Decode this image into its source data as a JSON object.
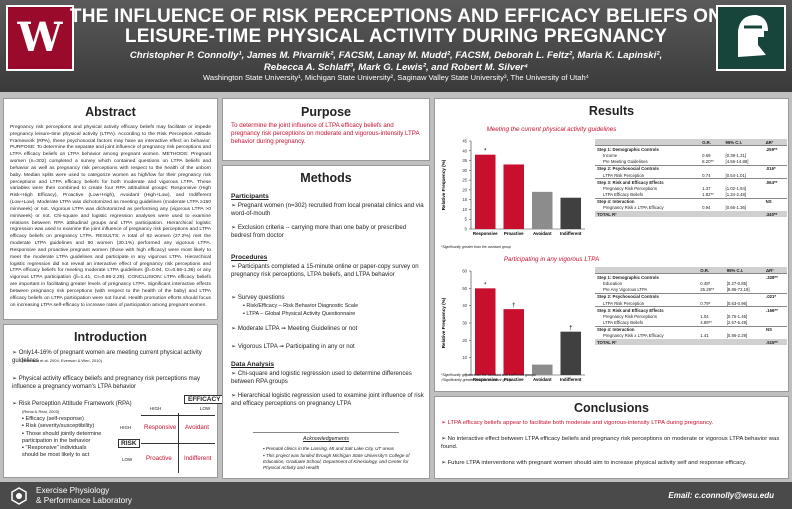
{
  "title": {
    "line1": "THE INFLUENCE OF RISK PERCEPTIONS AND EFFICACY BELIEFS ON",
    "line2": "LEISURE-TIME PHYSICAL ACTIVITY DURING PREGNANCY"
  },
  "authors": {
    "line1": "Christopher P. Connolly¹, James M. Pivarnik², FACSM, Lanay M. Mudd², FACSM, Deborah L. Feltz², Maria K. Lapinski²,",
    "line2": "Rebecca A. Schlaff³, Mark G. Lewis², and Robert M. Silver⁴",
    "affiliations": "Washington State University¹, Michigan State University², Saginaw Valley State University³, The University of Utah⁴"
  },
  "abstract": {
    "heading": "Abstract",
    "text": "Pregnancy risk perceptions and physical activity efficacy beliefs may facilitate or impede pregnancy leisure-time physical activity (LTPA). According to the Risk Perception Attitude Framework (RPA), these psychosocial factors may have an interactive effect on behavior. PURPOSE: To determine the separate and joint influence of pregnancy risk perceptions and LTPA efficacy beliefs on LTPA behavior among pregnant women. METHODS: Pregnant women (n=302) completed a survey which contained questions on LTPA beliefs and behavior as well as pregnancy risk perceptions with respect to the health of the unborn baby. Median splits were used to categorize women as high/low for their pregnancy risk perceptions and LTPA efficacy beliefs for both moderate and vigorous LTPA. These variables were then combined to create four RPA attitudinal groups: Responsive (High Risk+High Efficacy), Proactive (Low+High), Avoidant (High+Low), and Indifferent (Low+Low). Moderate LTPA was dichotomized as meeting guidelines (moderate LTPA ≥150 min/week) or not. Vigorous LTPA was dichotomized as performing any (vigorous LTPA >0 min/week) or not. Chi-square and logistic regression analyses were used to examine relations between RPA attitudinal groups and LTPA participation. Hierarchical logistic regression was used to examine the joint influence of pregnancy risk perceptions and LTPA efficacy beliefs on pregnancy LTPA. RESULTS: A total of 82 women (27.2%) met the moderate LTPA guidelines and 90 women (30.1%) performed any vigorous LTPA. Responsive and proactive pregnant women (those with high efficacy) were most likely to meet the moderate LTPA guidelines and participate in any vigorous LTPA. Hierarchical logistic regression did not reveal an interactive effect of pregnancy risk perceptions and LTPA efficacy beliefs for meeting moderate LTPA guidelines (β=0.94, CI=0.66-1.36) or any vigorous LTPA participation (β=1.41, CI=0.86-2.29). CONCLUSION: LTPA efficacy beliefs are important in facilitating greater levels of pregnancy LTPA. Significant interactive effects between pregnancy risk perceptions (with respect to the health of the baby) and LTPA efficacy beliefs on LTPA participation were not found. Health promotion efforts should focus on increasing LTPA self-efficacy to increase rates of participation among pregnant women."
  },
  "introduction": {
    "heading": "Introduction",
    "b1": "Only14-16% of pregnant women are meeting current physical activity guidelines",
    "b1ref": "(Evenson et al. 2004; Evenson & Wen, 2010)",
    "b2": "Physical activity efficacy beliefs and pregnancy risk perceptions may influence a pregnancy woman's LTPA behavior",
    "b3": "Risk Perception Attitude Framework (RPA)",
    "b3ref": "(Rimal & Real, 2003)",
    "subs": [
      "Efficacy (self-response)",
      "Risk (severity/susceptibility)",
      "Those should jointly determine participation in the behavior",
      "\"Responsive\" individuals should be most likely to act"
    ],
    "rpa": {
      "efficacy": "EFFICACY",
      "risk": "RISK",
      "high": "HIGH",
      "low": "LOW",
      "cells": [
        "Responsive",
        "Avoidant",
        "Proactive",
        "Indifferent"
      ]
    }
  },
  "purpose": {
    "heading": "Purpose",
    "text": "To determine the joint influence of LTPA efficacy beliefs and pregnancy risk perceptions on moderate and vigorous-intensity LTPA behavior during pregnancy."
  },
  "methods": {
    "heading": "Methods",
    "participants_h": "Participants",
    "p1": "Pregnant women (n=302) recruited from local prenatal clinics and via word-of-mouth",
    "p2": "Exclusion criteria -- carrying more than one baby or prescribed bedrest from doctor",
    "procedures_h": "Procedures",
    "pr1": "Participants completed a 15-minute online or paper-copy survey on pregnancy risk perceptions, LTPA beliefs, and LTPA behavior",
    "pr2": "Survey questions",
    "pr2a": "Risk/Efficacy – Risk Behavior Diagnostic Scale",
    "pr2b": "LTPA – Global Physical Activity Questionnaire",
    "pr3": "Moderate LTPA ➞ Meeting Guidelines or not",
    "pr4": "Vigorous LTPA ➞ Participating in any or not",
    "da_h": "Data Analysis",
    "da1": "Chi-square and logistic regression used to determine differences between RPA groups",
    "da2": "Hierarchical logistic regression used to examine joint influence of risk and efficacy perceptions on pregnancy LTPA",
    "ack_h": "Acknowledgements",
    "ack1": "Prenatal clinics in the Lansing, MI and Salt Lake City, UT areas",
    "ack2": "This project was funded through Michigan State University's College of Education, Graduate School, Department of Kinesiology, and Center for Physical Activity and Health"
  },
  "results": {
    "heading": "Results",
    "sub1": "Meeting the current physical activity guidelines",
    "sub2": "Participating in any vigorous LTPA",
    "note1": "*Significantly greater than the avoidant group",
    "note2a": "*Significantly greater than the avoidant and indifferent groups",
    "note2b": "†Significantly greater than the avoidant group",
    "table_head": [
      "",
      "O.R.",
      "95% C.I.",
      "ΔR²"
    ],
    "table1": [
      [
        "Step 1: Demographic Controls",
        "",
        "",
        ".259**"
      ],
      [
        "Income",
        "0.69",
        "[0.39-1.21]",
        ""
      ],
      [
        "Pre Meeting Guidelines",
        "8.20**",
        "[4.56-14.88]",
        ""
      ],
      [
        "Step 2: Psychosocial Controls",
        "",
        "",
        ".016*"
      ],
      [
        "LTPA Risk Perception",
        "0.74",
        "[0.54-1.01]",
        ""
      ],
      [
        "Step 3: Risk and Efficacy Effects",
        "",
        "",
        ".064**"
      ],
      [
        "Pregnancy Risk Perceptions",
        "1.37",
        "[1.02-1.84]",
        ""
      ],
      [
        "LTPA Efficacy Beliefs",
        "1.82**",
        "[1.34-2.48]",
        ""
      ],
      [
        "Step 4: Interaction",
        "",
        "",
        "NS"
      ],
      [
        "Pregnancy Risk x LTPA Efficacy",
        "0.94",
        "[0.66-1.36]",
        ""
      ],
      [
        "TOTAL R²",
        "",
        "",
        ".340**"
      ]
    ],
    "table2": [
      [
        "Step 1: Demographic Controls",
        "",
        "",
        ".328**"
      ],
      [
        "Education",
        "0.48*",
        "[0.27-0.85]",
        ""
      ],
      [
        "Pre Any Vigorous LTPA",
        "25.29**",
        "[8.86-72.19]",
        ""
      ],
      [
        "Step 2: Psychosocial Controls",
        "",
        "",
        ".021*"
      ],
      [
        "LTPA Risk Perception",
        "0.79*",
        "[0.63-0.96]",
        ""
      ],
      [
        "Step 3: Risk and Efficacy Effects",
        "",
        "",
        ".166**"
      ],
      [
        "Pregnancy Risk Perceptions",
        "1.04",
        "[0.75-1.46]",
        ""
      ],
      [
        "LTPA Efficacy Beliefs",
        "4.89**",
        "[2.57-6.49]",
        ""
      ],
      [
        "Step 4: Interaction",
        "",
        "",
        "NS"
      ],
      [
        "Pregnancy Risk x LTPA Efficacy",
        "1.41",
        "[0.86-2.29]",
        ""
      ],
      [
        "TOTAL R²",
        "",
        "",
        ".515**"
      ]
    ]
  },
  "chart_data": [
    {
      "type": "bar",
      "title": "Meeting the current physical activity guidelines",
      "ylabel": "Relative Frequency (%)",
      "categories": [
        "Responsive",
        "Proactive",
        "Avoidant",
        "Indifferent"
      ],
      "values": [
        38,
        33,
        19,
        16
      ],
      "ylim": [
        0,
        45
      ],
      "ticks": [
        0,
        5,
        10,
        15,
        20,
        25,
        30,
        35,
        40,
        45
      ],
      "colors": [
        "#c8102e",
        "#c8102e",
        "#8c8c8c",
        "#404040"
      ],
      "marks": [
        "*",
        "",
        "",
        ""
      ]
    },
    {
      "type": "bar",
      "title": "Participating in any vigorous LTPA",
      "ylabel": "Relative Frequency (%)",
      "categories": [
        "Responsive",
        "Proactive",
        "Avoidant",
        "Indifferent"
      ],
      "values": [
        50,
        38,
        6,
        25
      ],
      "ylim": [
        0,
        60
      ],
      "ticks": [
        0,
        10,
        20,
        30,
        40,
        50,
        60
      ],
      "colors": [
        "#c8102e",
        "#c8102e",
        "#8c8c8c",
        "#404040"
      ],
      "marks": [
        "*",
        "†",
        "",
        "†"
      ]
    }
  ],
  "conclusions": {
    "heading": "Conclusions",
    "c1": "LTPA efficacy beliefs appear to facilitate both moderate and vigorous-intensity LTPA during pregnancy.",
    "c2": "No interactive effect between LTPA efficacy beliefs and pregnancy risk perceptions on moderate or vigorous LTPA behavior was found.",
    "c3": "Future LTPA interventions with pregnant women should aim to increase physical activity self and response efficacy."
  },
  "footer": {
    "lab1": "Exercise Physiology",
    "lab2": "& Performance Laboratory",
    "email": "Email: c.connolly@wsu.edu"
  }
}
